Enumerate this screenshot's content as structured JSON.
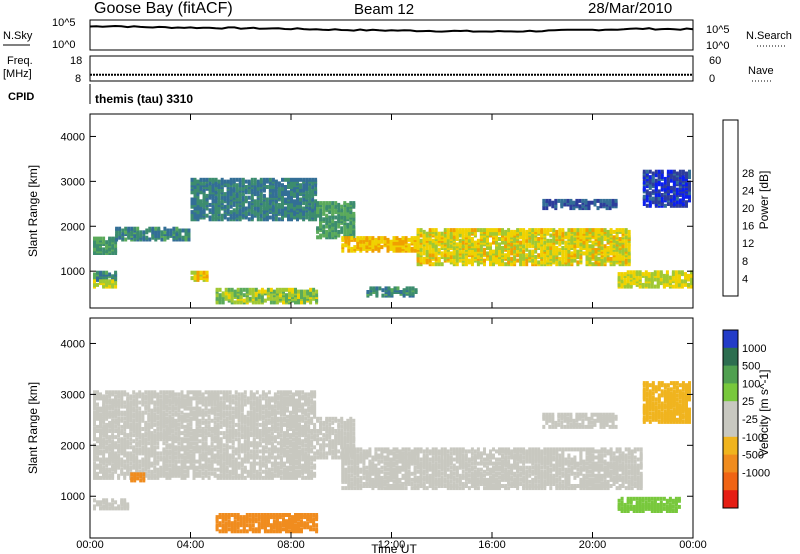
{
  "header": {
    "station": "Goose Bay (fitACF)",
    "beam": "Beam 12",
    "date": "28/Mar/2010"
  },
  "cpid": {
    "label": "CPID",
    "value": "themis (tau) 3310"
  },
  "strips": {
    "nsky": {
      "left_label": "N.Sky",
      "right_label": "N.Search",
      "y_top_tick": "10^5",
      "y_bottom_tick": "10^0",
      "right_top_tick": "10^5",
      "right_bottom_tick": "10^0",
      "y_level": 3.9
    },
    "freq": {
      "label_line1": "Freq.",
      "label_line2": "[MHz]",
      "right_label": "Nave",
      "ticks_left": [
        "18",
        "8"
      ],
      "ticks_right": [
        "60",
        "0"
      ],
      "y_level": 10.5
    }
  },
  "panels": {
    "power": {
      "ylabel": "Slant Range [km]",
      "yticks": [
        "1000",
        "2000",
        "3000",
        "4000"
      ],
      "colorbar_label": "Power [dB]",
      "colorbar_ticks": [
        "4",
        "8",
        "12",
        "16",
        "20",
        "24",
        "28"
      ]
    },
    "velocity": {
      "ylabel": "Slant Range [km]",
      "yticks": [
        "1000",
        "2000",
        "3000",
        "4000"
      ],
      "colorbar_label": "Velocity [m s^-1]",
      "colorbar_ticks": [
        "1000",
        "500",
        "100",
        "25",
        "-25",
        "-100",
        "-500",
        "-1000"
      ]
    }
  },
  "xaxis": {
    "label": "Time UT",
    "ticks": [
      "00:00",
      "04:00",
      "08:00",
      "12:00",
      "16:00",
      "20:00",
      "00:00"
    ]
  },
  "colors": {
    "power_scale": [
      "#0a1ef0",
      "#2d3c9b",
      "#336e96",
      "#3c8c6e",
      "#5aaa5a",
      "#a0c832",
      "#f0d200",
      "#f0a000",
      "#f06e00",
      "#f02814"
    ],
    "velocity_scale": [
      "#233cc8",
      "#2d6e50",
      "#50a050",
      "#78c83c",
      "#c8c8c0",
      "#c8c8c0",
      "#f0b41e",
      "#f08c1e",
      "#f06414",
      "#e61e14"
    ],
    "ground_scatter": "#c8c8c0"
  },
  "chart_data": [
    {
      "type": "line",
      "title": "N.Sky",
      "x": [
        0,
        1,
        2,
        4,
        6,
        8,
        10,
        12,
        14,
        16,
        18,
        20,
        22,
        24
      ],
      "values": [
        4.2,
        4.3,
        4.1,
        4.0,
        3.9,
        3.8,
        3.6,
        3.5,
        3.4,
        3.3,
        3.4,
        3.6,
        3.8,
        3.7
      ],
      "xlim": [
        0,
        24
      ],
      "ylabel": "N.Sky"
    },
    {
      "type": "line",
      "title": "Freq.",
      "x": [
        0,
        24
      ],
      "values": [
        10.5,
        10.5
      ],
      "xlim": [
        0,
        24
      ],
      "ylim": [
        8,
        18
      ],
      "ylabel": "[MHz]"
    },
    {
      "type": "heatmap",
      "title": "Power [dB]",
      "xlabel": "Time UT",
      "ylabel": "Slant Range [km]",
      "xlim": [
        0,
        24
      ],
      "ylim": [
        180,
        4500
      ],
      "value_range": [
        0,
        30
      ],
      "regions": [
        {
          "t0": 0.0,
          "t1": 1.0,
          "r0": 1450,
          "r1": 1800,
          "level": 12
        },
        {
          "t0": 0.0,
          "t1": 1.0,
          "r0": 850,
          "r1": 1050,
          "level": 10
        },
        {
          "t0": 0.0,
          "t1": 1.0,
          "r0": 700,
          "r1": 850,
          "level": 18
        },
        {
          "t0": 1.0,
          "t1": 4.0,
          "r0": 1750,
          "r1": 2000,
          "level": 10
        },
        {
          "t0": 4.0,
          "t1": 9.0,
          "r0": 2200,
          "r1": 3100,
          "level": 9
        },
        {
          "t0": 4.0,
          "t1": 4.7,
          "r0": 850,
          "r1": 1050,
          "level": 20
        },
        {
          "t0": 5.0,
          "t1": 9.0,
          "r0": 350,
          "r1": 650,
          "level": 16
        },
        {
          "t0": 9.0,
          "t1": 10.5,
          "r0": 1800,
          "r1": 2600,
          "level": 12
        },
        {
          "t0": 10.0,
          "t1": 13.0,
          "r0": 1500,
          "r1": 1800,
          "level": 21
        },
        {
          "t0": 13.0,
          "t1": 21.5,
          "r0": 1200,
          "r1": 2000,
          "level": 19
        },
        {
          "t0": 11.0,
          "t1": 13.0,
          "r0": 500,
          "r1": 700,
          "level": 10
        },
        {
          "t0": 18.0,
          "t1": 21.0,
          "r0": 2450,
          "r1": 2650,
          "level": 6
        },
        {
          "t0": 21.0,
          "t1": 24.0,
          "r0": 700,
          "r1": 1050,
          "level": 18
        },
        {
          "t0": 22.0,
          "t1": 24.0,
          "r0": 2500,
          "r1": 3300,
          "level": 4
        }
      ]
    },
    {
      "type": "heatmap",
      "title": "Velocity [m s^-1]",
      "xlabel": "Time UT",
      "ylabel": "Slant Range [km]",
      "xlim": [
        0,
        24
      ],
      "ylim": [
        180,
        4500
      ],
      "value_range": [
        -1000,
        1000
      ],
      "regions": [
        {
          "t0": 0.0,
          "t1": 9.0,
          "r0": 1400,
          "r1": 3100,
          "level": 0
        },
        {
          "t0": 0.0,
          "t1": 1.5,
          "r0": 800,
          "r1": 1000,
          "level": 0
        },
        {
          "t0": 1.6,
          "t1": 2.2,
          "r0": 1350,
          "r1": 1500,
          "level": -300
        },
        {
          "t0": 5.0,
          "t1": 9.0,
          "r0": 350,
          "r1": 700,
          "level": -150
        },
        {
          "t0": 9.0,
          "t1": 10.5,
          "r0": 1800,
          "r1": 2600,
          "level": 0
        },
        {
          "t0": 10.0,
          "t1": 22.0,
          "r0": 1200,
          "r1": 2000,
          "level": 0
        },
        {
          "t0": 18.0,
          "t1": 21.0,
          "r0": 2400,
          "r1": 2650,
          "level": 0
        },
        {
          "t0": 21.0,
          "t1": 23.5,
          "r0": 750,
          "r1": 1000,
          "level": 60
        },
        {
          "t0": 22.0,
          "t1": 24.0,
          "r0": 2500,
          "r1": 3300,
          "level": -60
        }
      ]
    }
  ]
}
